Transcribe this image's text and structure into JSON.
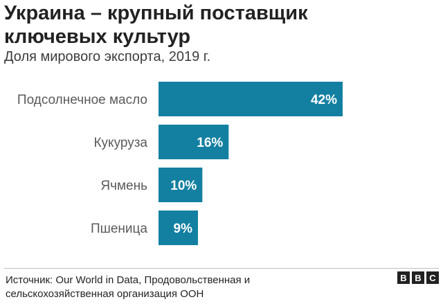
{
  "title": "Украина – крупный поставщик ключевых культур",
  "subtitle": "Доля мирового экспорта, 2019 г.",
  "source": "Источник: Our World in Data, Продовольственная и сельскохозяйственная организация ООН",
  "logo": [
    "B",
    "B",
    "C"
  ],
  "bar_color": "#1380A1",
  "chart_data": {
    "type": "bar",
    "orientation": "horizontal",
    "title": "Украина – крупный поставщик ключевых культур",
    "subtitle": "Доля мирового экспорта, 2019 г.",
    "categories": [
      "Подсолнечное масло",
      "Кукуруза",
      "Ячмень",
      "Пшеница"
    ],
    "values": [
      42,
      16,
      10,
      9
    ],
    "value_labels": [
      "42%",
      "16%",
      "10%",
      "9%"
    ],
    "xlim": [
      0,
      42
    ],
    "grid": false,
    "legend": "none"
  }
}
